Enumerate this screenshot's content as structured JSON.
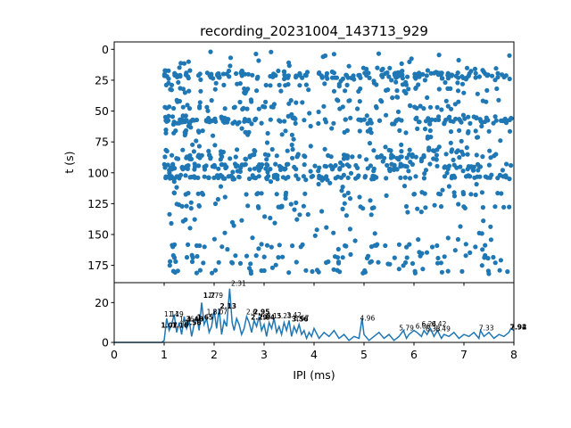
{
  "figure": {
    "title": "recording_20231004_143713_929"
  },
  "chart_data": [
    {
      "type": "scatter",
      "title": "recording_20231004_143713_929",
      "ylabel": "t (s)",
      "xlabel": "",
      "xlim": [
        0,
        8
      ],
      "ylim": [
        189,
        -6
      ],
      "y_inverted": true,
      "y_ticks": [
        0,
        25,
        50,
        75,
        100,
        125,
        150,
        175
      ],
      "x_ticks": [
        0,
        1,
        2,
        3,
        4,
        5,
        6,
        7,
        8
      ],
      "x_tick_labels_visible": false,
      "marker_color": "#1f77b4",
      "description_of_points": "spike-interval raster: each dot is one inter-pulse interval (x, ms) at recording time (y, s)",
      "row_times": [
        18,
        20,
        22,
        24,
        28,
        33,
        42,
        47,
        55,
        57,
        58,
        60,
        67,
        82,
        86,
        88,
        94,
        96,
        98,
        103,
        104,
        117,
        128,
        159,
        168,
        173,
        180
      ]
    },
    {
      "type": "line",
      "xlabel": "IPI (ms)",
      "ylabel": "",
      "xlim": [
        0,
        8
      ],
      "ylim": [
        0,
        30
      ],
      "y_ticks": [
        0,
        20
      ],
      "x_ticks": [
        0,
        1,
        2,
        3,
        4,
        5,
        6,
        7,
        8
      ],
      "line_color": "#1f77b4",
      "histogram_x": [
        0,
        0.95,
        1.0,
        1.05,
        1.1,
        1.15,
        1.2,
        1.25,
        1.3,
        1.35,
        1.4,
        1.45,
        1.5,
        1.55,
        1.6,
        1.65,
        1.7,
        1.75,
        1.8,
        1.85,
        1.9,
        1.95,
        2.0,
        2.05,
        2.1,
        2.15,
        2.2,
        2.25,
        2.31,
        2.36,
        2.4,
        2.45,
        2.5,
        2.55,
        2.6,
        2.65,
        2.7,
        2.75,
        2.8,
        2.85,
        2.9,
        2.95,
        3.0,
        3.05,
        3.1,
        3.15,
        3.2,
        3.25,
        3.3,
        3.35,
        3.4,
        3.45,
        3.5,
        3.55,
        3.6,
        3.65,
        3.7,
        3.75,
        3.8,
        3.85,
        3.9,
        3.95,
        4.0,
        4.1,
        4.2,
        4.3,
        4.4,
        4.5,
        4.6,
        4.7,
        4.8,
        4.9,
        4.96,
        5.0,
        5.1,
        5.2,
        5.3,
        5.4,
        5.5,
        5.6,
        5.7,
        5.79,
        5.85,
        5.9,
        6.0,
        6.06,
        6.15,
        6.2,
        6.26,
        6.33,
        6.4,
        6.47,
        6.55,
        6.6,
        6.7,
        6.8,
        6.9,
        7.0,
        7.1,
        7.2,
        7.3,
        7.33,
        7.4,
        7.5,
        7.6,
        7.7,
        7.8,
        7.9,
        7.94,
        8.0
      ],
      "histogram_y": [
        0,
        0,
        1,
        12,
        6,
        9,
        14,
        5,
        10,
        4,
        13,
        7,
        11,
        3,
        9,
        13,
        6,
        20,
        9,
        12,
        5,
        8,
        16,
        7,
        17,
        4,
        11,
        8,
        27,
        10,
        6,
        12,
        9,
        4,
        7,
        13,
        10,
        5,
        11,
        8,
        13,
        6,
        9,
        3,
        10,
        7,
        12,
        5,
        8,
        4,
        10,
        6,
        11,
        3,
        8,
        5,
        9,
        4,
        6,
        2,
        5,
        3,
        7,
        2,
        5,
        3,
        6,
        2,
        4,
        1,
        3,
        2,
        12,
        4,
        1,
        3,
        5,
        2,
        4,
        1,
        3,
        6,
        2,
        4,
        6,
        5,
        3,
        6,
        4,
        7,
        3,
        6,
        2,
        4,
        3,
        5,
        2,
        4,
        3,
        5,
        2,
        6,
        3,
        5,
        2,
        4,
        3,
        5,
        7,
        6
      ],
      "peak_labels": [
        {
          "x": 1.15,
          "y": 13.0,
          "text": "1.14",
          "bold": false
        },
        {
          "x": 1.24,
          "y": 13.0,
          "text": "1.19",
          "bold": false
        },
        {
          "x": 1.1,
          "y": 7.5,
          "text": "1.07",
          "bold": true
        },
        {
          "x": 1.32,
          "y": 7.5,
          "text": "1.16",
          "bold": true
        },
        {
          "x": 1.45,
          "y": 10.5,
          "text": "1.36",
          "bold": false
        },
        {
          "x": 1.62,
          "y": 10.5,
          "text": "1.48",
          "bold": true
        },
        {
          "x": 1.58,
          "y": 8.8,
          "text": "1.56",
          "bold": true
        },
        {
          "x": 1.82,
          "y": 11.5,
          "text": "1.65",
          "bold": true
        },
        {
          "x": 1.9,
          "y": 22.5,
          "text": "1.7",
          "bold": true
        },
        {
          "x": 2.03,
          "y": 22.5,
          "text": "1.79",
          "bold": false
        },
        {
          "x": 2.0,
          "y": 14.0,
          "text": "1.87",
          "bold": false
        },
        {
          "x": 2.12,
          "y": 14.0,
          "text": "2.07",
          "bold": false
        },
        {
          "x": 2.28,
          "y": 17.0,
          "text": "2.13",
          "bold": true
        },
        {
          "x": 2.49,
          "y": 28.5,
          "text": "2.31",
          "bold": false
        },
        {
          "x": 2.75,
          "y": 14.0,
          "text": "2.6",
          "bold": false
        },
        {
          "x": 2.95,
          "y": 14.0,
          "text": "2.95",
          "bold": true
        },
        {
          "x": 2.9,
          "y": 11.5,
          "text": "2.79",
          "bold": true
        },
        {
          "x": 3.05,
          "y": 11.5,
          "text": "2.84",
          "bold": true
        },
        {
          "x": 3.2,
          "y": 12.0,
          "text": "3.15",
          "bold": false
        },
        {
          "x": 3.4,
          "y": 12.0,
          "text": "3.23",
          "bold": false
        },
        {
          "x": 3.6,
          "y": 12.5,
          "text": "3.42",
          "bold": false
        },
        {
          "x": 3.75,
          "y": 11.0,
          "text": "3.67",
          "bold": false
        },
        {
          "x": 3.72,
          "y": 10.5,
          "text": "3.56",
          "bold": true
        },
        {
          "x": 5.07,
          "y": 11.0,
          "text": "4.96",
          "bold": false
        },
        {
          "x": 5.85,
          "y": 6.0,
          "text": "5.79",
          "bold": false
        },
        {
          "x": 6.18,
          "y": 7.0,
          "text": "6.06",
          "bold": false
        },
        {
          "x": 6.3,
          "y": 8.0,
          "text": "6.24",
          "bold": false
        },
        {
          "x": 6.5,
          "y": 8.0,
          "text": "6.42",
          "bold": false
        },
        {
          "x": 6.38,
          "y": 5.5,
          "text": "6.33",
          "bold": false
        },
        {
          "x": 6.58,
          "y": 5.5,
          "text": "6.49",
          "bold": false
        },
        {
          "x": 7.45,
          "y": 6.0,
          "text": "7.33",
          "bold": false
        },
        {
          "x": 8.09,
          "y": 6.5,
          "text": "7.94",
          "bold": true
        },
        {
          "x": 8.09,
          "y": 6.5,
          "text": "7.92",
          "bold": true
        }
      ]
    }
  ]
}
